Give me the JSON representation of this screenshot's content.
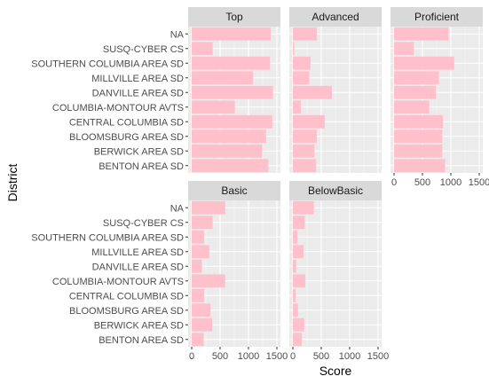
{
  "chart_data": {
    "type": "bar",
    "orientation": "horizontal",
    "facet_layout": "3 columns, 2 rows",
    "xlabel": "Score",
    "ylabel": "District",
    "xlim": [
      0,
      1500
    ],
    "xticks": [
      "0",
      "500",
      "1000",
      "1500"
    ],
    "bar_color": "#ffc0cb",
    "panel_background": "#ebebeb",
    "strip_background": "#d9d9d9",
    "grid": true,
    "categories": [
      "NA",
      "SUSQ-CYBER CS",
      "SOUTHERN COLUMBIA AREA SD",
      "MILLVILLE AREA SD",
      "DANVILLE AREA SD",
      "COLUMBIA-MONTOUR AVTS",
      "CENTRAL COLUMBIA SD",
      "BLOOMSBURG AREA SD",
      "BERWICK AREA SD",
      "BENTON AREA SD"
    ],
    "series": [
      {
        "name": "Top",
        "values": [
          1390,
          370,
          1380,
          1080,
          1430,
          760,
          1420,
          1310,
          1240,
          1350
        ]
      },
      {
        "name": "Advanced",
        "values": [
          420,
          25,
          310,
          290,
          690,
          140,
          560,
          420,
          380,
          410
        ]
      },
      {
        "name": "Proficient",
        "values": [
          960,
          350,
          1060,
          790,
          740,
          620,
          860,
          850,
          850,
          900
        ]
      },
      {
        "name": "Basic",
        "values": [
          590,
          370,
          220,
          310,
          180,
          590,
          220,
          330,
          360,
          210
        ]
      },
      {
        "name": "BelowBasic",
        "values": [
          370,
          210,
          80,
          190,
          60,
          220,
          50,
          90,
          200,
          160
        ]
      }
    ]
  }
}
